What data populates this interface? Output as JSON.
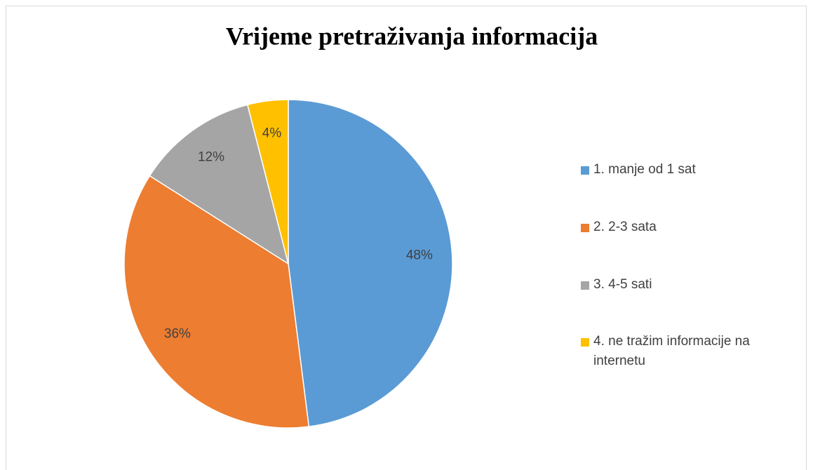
{
  "chart_data": {
    "type": "pie",
    "title": "Vrijeme pretraživanja informacija",
    "categories": [
      "1. manje od 1 sat",
      "2. 2-3 sata",
      "3. 4-5 sati",
      "4. ne tražim informacije na internetu"
    ],
    "values": [
      48,
      36,
      12,
      4
    ],
    "value_labels": [
      "48%",
      "36%",
      "12%",
      "4%"
    ],
    "colors": [
      "#5b9bd5",
      "#ed7d31",
      "#a5a5a5",
      "#ffc000"
    ],
    "legend": "right"
  }
}
